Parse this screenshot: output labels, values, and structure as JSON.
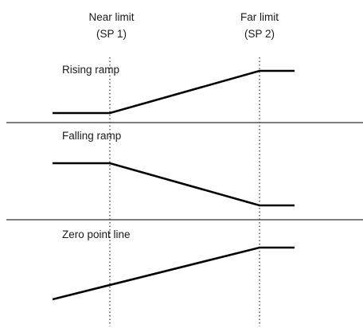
{
  "headers": {
    "near": {
      "line1": "Near limit",
      "line2": "(SP 1)"
    },
    "far": {
      "line1": "Far limit",
      "line2": "(SP 2)"
    }
  },
  "panels": [
    {
      "label": "Rising ramp",
      "type": "rising"
    },
    {
      "label": "Falling ramp",
      "type": "falling"
    },
    {
      "label": "Zero point line",
      "type": "zero-point"
    }
  ],
  "colors": {
    "line": "#000000",
    "separator": "#333333",
    "guide": "#333333",
    "text": "#1a1a1a"
  }
}
